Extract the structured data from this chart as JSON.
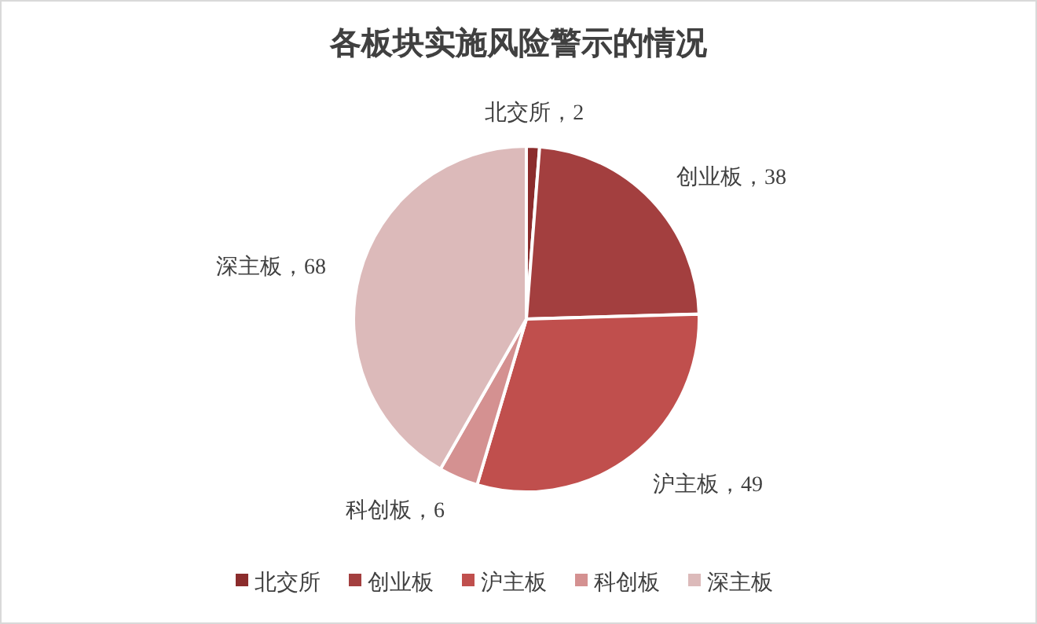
{
  "chart_data": {
    "type": "pie",
    "title": "各板块实施风险警示的情况",
    "categories": [
      "北交所",
      "创业板",
      "沪主板",
      "科创板",
      "深主板"
    ],
    "values": [
      2,
      38,
      49,
      6,
      68
    ],
    "colors": [
      "#8b2c2c",
      "#a33f3f",
      "#c04f4d",
      "#d49191",
      "#dcbaba"
    ],
    "value_labels": [
      "，2",
      "，38",
      "，49",
      "，6",
      "，68"
    ],
    "legend": "bottom"
  }
}
